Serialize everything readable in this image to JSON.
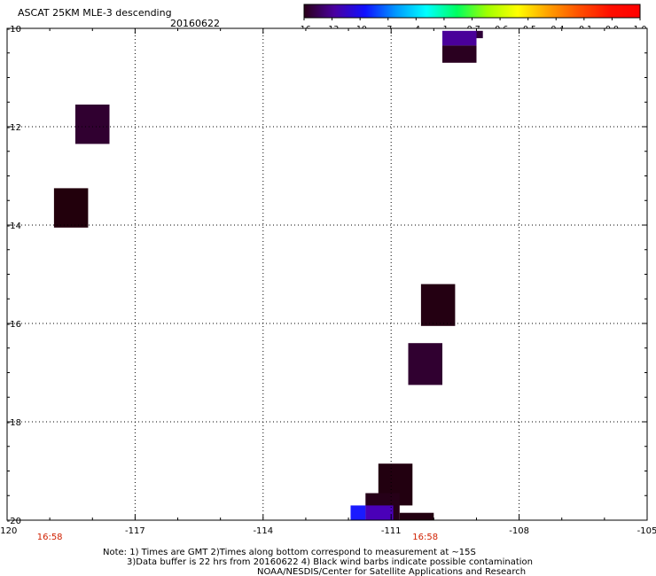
{
  "header": {
    "title": "ASCAT 25KM MLE-3 descending",
    "date": "20160622"
  },
  "colorbar": {
    "labels": [
      "-16",
      "-13",
      "-10",
      "-7",
      "-4",
      "-1",
      "-0.7",
      "-0.6",
      "-0.5",
      "-0.4",
      "-0.1",
      "0.0",
      "1.0"
    ],
    "colors": [
      "#2a0018",
      "#4a00a0",
      "#1010ff",
      "#0098ff",
      "#00ffff",
      "#00ff60",
      "#a0ff00",
      "#ffff00",
      "#ffa000",
      "#ff5000",
      "#ff1000",
      "#ff0000"
    ]
  },
  "time_labels": [
    {
      "text": "16:58",
      "lon": -119.0
    },
    {
      "text": "16:58",
      "lon": -110.2
    }
  ],
  "notes": [
    "Note: 1) Times are GMT 2)Times along bottom correspond to measurement at ~15S",
    "3)Data buffer is 22 hrs from 20160622 4) Black wind barbs indicate possible contamination",
    "NOAA/NESDIS/Center for Satellite Applications and Research"
  ],
  "chart_data": {
    "type": "heatmap",
    "title": "ASCAT 25KM MLE-3 descending",
    "subtitle": "20160622",
    "xlabel": "",
    "ylabel": "",
    "xlim": [
      -120,
      -105
    ],
    "ylim": [
      -20,
      -10
    ],
    "x_ticks": [
      -120,
      -117,
      -114,
      -111,
      -108,
      -105
    ],
    "x_tick_labels": [
      "-120",
      "-117",
      "-114",
      "-111",
      "-108",
      "-105"
    ],
    "y_ticks": [
      -10,
      -12,
      -14,
      -16,
      -18,
      -20
    ],
    "y_tick_labels": [
      "-10",
      "-12",
      "-14",
      "-16",
      "-18",
      "-20"
    ],
    "grid": true,
    "colorbar_labels": [
      "-16",
      "-13",
      "-10",
      "-7",
      "-4",
      "-1",
      "-0.7",
      "-0.6",
      "-0.5",
      "-0.4",
      "-0.1",
      "0.0",
      "1.0"
    ],
    "cells": [
      {
        "lon": [
          -109.8,
          -109.0
        ],
        "lat": [
          -10.35,
          -10.05
        ],
        "value": -12,
        "color": "#4a009a"
      },
      {
        "lon": [
          -109.0,
          -108.85
        ],
        "lat": [
          -10.2,
          -10.05
        ],
        "value": -14,
        "color": "#2e0038"
      },
      {
        "lon": [
          -109.8,
          -109.0
        ],
        "lat": [
          -10.7,
          -10.35
        ],
        "value": -15,
        "color": "#2a0020"
      },
      {
        "lon": [
          -118.4,
          -117.6
        ],
        "lat": [
          -12.35,
          -11.55
        ],
        "value": -15,
        "color": "#300030"
      },
      {
        "lon": [
          -118.9,
          -118.1
        ],
        "lat": [
          -14.05,
          -13.25
        ],
        "value": -16,
        "color": "#22000c"
      },
      {
        "lon": [
          -110.3,
          -109.5
        ],
        "lat": [
          -16.05,
          -15.2
        ],
        "value": -16,
        "color": "#240012"
      },
      {
        "lon": [
          -110.6,
          -109.8
        ],
        "lat": [
          -17.25,
          -16.4
        ],
        "value": -15,
        "color": "#300030"
      },
      {
        "lon": [
          -111.3,
          -110.5
        ],
        "lat": [
          -19.7,
          -18.85
        ],
        "value": -16,
        "color": "#220010"
      },
      {
        "lon": [
          -111.6,
          -110.8
        ],
        "lat": [
          -20.0,
          -19.45
        ],
        "value": -16,
        "color": "#260018"
      },
      {
        "lon": [
          -110.8,
          -110.0
        ],
        "lat": [
          -20.0,
          -19.85
        ],
        "value": -16,
        "color": "#220010"
      },
      {
        "lon": [
          -111.6,
          -110.95
        ],
        "lat": [
          -20.0,
          -19.7
        ],
        "value": -12,
        "color": "#4a00b8"
      },
      {
        "lon": [
          -111.95,
          -111.6
        ],
        "lat": [
          -20.0,
          -19.7
        ],
        "value": -9,
        "color": "#1a1aff"
      }
    ]
  }
}
